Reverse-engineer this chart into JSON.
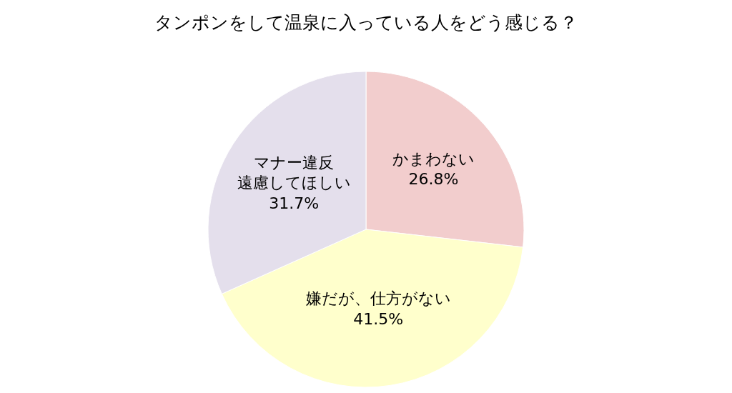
{
  "chart_data": {
    "type": "pie",
    "title": "タンポンをして温泉に入っている人をどう感じる？",
    "categories": [
      "かまわない",
      "嫌だが、仕方がない",
      "マナー違反遠慮してほしい"
    ],
    "values": [
      26.8,
      41.5,
      31.7
    ],
    "value_labels": [
      "26.8%",
      "41.5%",
      "31.7%"
    ],
    "colors": [
      "#f2cdcd",
      "#ffffcc",
      "#e4dfec"
    ],
    "legend": false
  }
}
